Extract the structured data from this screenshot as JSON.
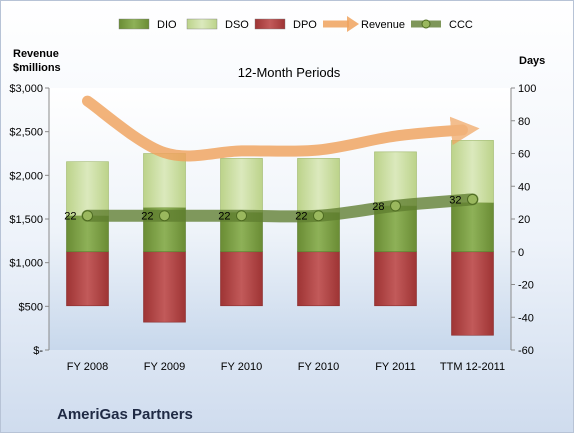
{
  "chart_data": {
    "type": "bar",
    "title": "12-Month Periods",
    "company": "AmeriGas Partners",
    "y_left_label": [
      "Revenue",
      "$millions"
    ],
    "y_right_label": "Days",
    "y_left_ticks": [
      "$-",
      "$500",
      "$1,000",
      "$1,500",
      "$2,000",
      "$2,500",
      "$3,000"
    ],
    "y_left_range": [
      0,
      3000
    ],
    "y_right_ticks": [
      "-60",
      "-40",
      "-20",
      "0",
      "20",
      "40",
      "60",
      "80",
      "100"
    ],
    "y_right_range": [
      -60,
      100
    ],
    "categories": [
      "FY 2008",
      "FY 2009",
      "FY 2010",
      "FY 2010",
      "FY 2011",
      "TTM 12-2011"
    ],
    "legend_position": "top",
    "series": [
      {
        "name": "DIO",
        "type": "bar",
        "color": "#7fa04a",
        "values": [
          22,
          27,
          24,
          24,
          28,
          30
        ]
      },
      {
        "name": "DSO",
        "type": "bar",
        "color": "#c9dca0",
        "values": [
          33,
          33,
          33,
          33,
          33,
          38
        ]
      },
      {
        "name": "DPO",
        "type": "bar",
        "color": "#b54848",
        "values": [
          -33,
          -43,
          -33,
          -33,
          -33,
          -51
        ]
      },
      {
        "name": "Revenue",
        "type": "line",
        "color": "#f0a35e",
        "axis": "left",
        "values": [
          2850,
          2260,
          2280,
          2290,
          2450,
          2520
        ]
      },
      {
        "name": "CCC",
        "type": "line",
        "color": "#6e8c3a",
        "axis": "right",
        "values": [
          22,
          22,
          22,
          22,
          28,
          32
        ]
      }
    ],
    "ccc_labels": [
      "22",
      "22",
      "22",
      "22",
      "28",
      "32"
    ]
  }
}
